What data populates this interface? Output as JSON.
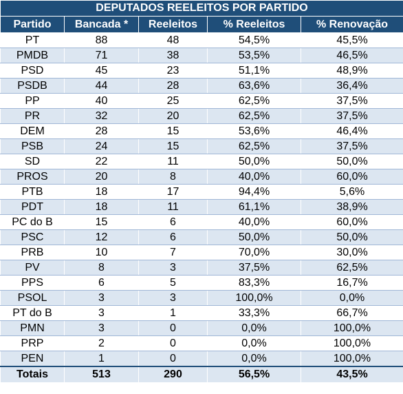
{
  "table": {
    "title": "DEPUTADOS REELEITOS POR PARTIDO",
    "headers": [
      "Partido",
      "Bancada *",
      "Reeleitos",
      "% Reeleitos",
      "% Renovação"
    ],
    "rows": [
      [
        "PT",
        "88",
        "48",
        "54,5%",
        "45,5%"
      ],
      [
        "PMDB",
        "71",
        "38",
        "53,5%",
        "46,5%"
      ],
      [
        "PSD",
        "45",
        "23",
        "51,1%",
        "48,9%"
      ],
      [
        "PSDB",
        "44",
        "28",
        "63,6%",
        "36,4%"
      ],
      [
        "PP",
        "40",
        "25",
        "62,5%",
        "37,5%"
      ],
      [
        "PR",
        "32",
        "20",
        "62,5%",
        "37,5%"
      ],
      [
        "DEM",
        "28",
        "15",
        "53,6%",
        "46,4%"
      ],
      [
        "PSB",
        "24",
        "15",
        "62,5%",
        "37,5%"
      ],
      [
        "SD",
        "22",
        "11",
        "50,0%",
        "50,0%"
      ],
      [
        "PROS",
        "20",
        "8",
        "40,0%",
        "60,0%"
      ],
      [
        "PTB",
        "18",
        "17",
        "94,4%",
        "5,6%"
      ],
      [
        "PDT",
        "18",
        "11",
        "61,1%",
        "38,9%"
      ],
      [
        "PC do B",
        "15",
        "6",
        "40,0%",
        "60,0%"
      ],
      [
        "PSC",
        "12",
        "6",
        "50,0%",
        "50,0%"
      ],
      [
        "PRB",
        "10",
        "7",
        "70,0%",
        "30,0%"
      ],
      [
        "PV",
        "8",
        "3",
        "37,5%",
        "62,5%"
      ],
      [
        "PPS",
        "6",
        "5",
        "83,3%",
        "16,7%"
      ],
      [
        "PSOL",
        "3",
        "3",
        "100,0%",
        "0,0%"
      ],
      [
        "PT do B",
        "3",
        "1",
        "33,3%",
        "66,7%"
      ],
      [
        "PMN",
        "3",
        "0",
        "0,0%",
        "100,0%"
      ],
      [
        "PRP",
        "2",
        "0",
        "0,0%",
        "100,0%"
      ],
      [
        "PEN",
        "1",
        "0",
        "0,0%",
        "100,0%"
      ]
    ],
    "totals": [
      "Totais",
      "513",
      "290",
      "56,5%",
      "43,5%"
    ]
  },
  "colors": {
    "header_bg": "#1f4e79",
    "header_text": "#ffffff",
    "alt_row_bg": "#dce6f1"
  }
}
